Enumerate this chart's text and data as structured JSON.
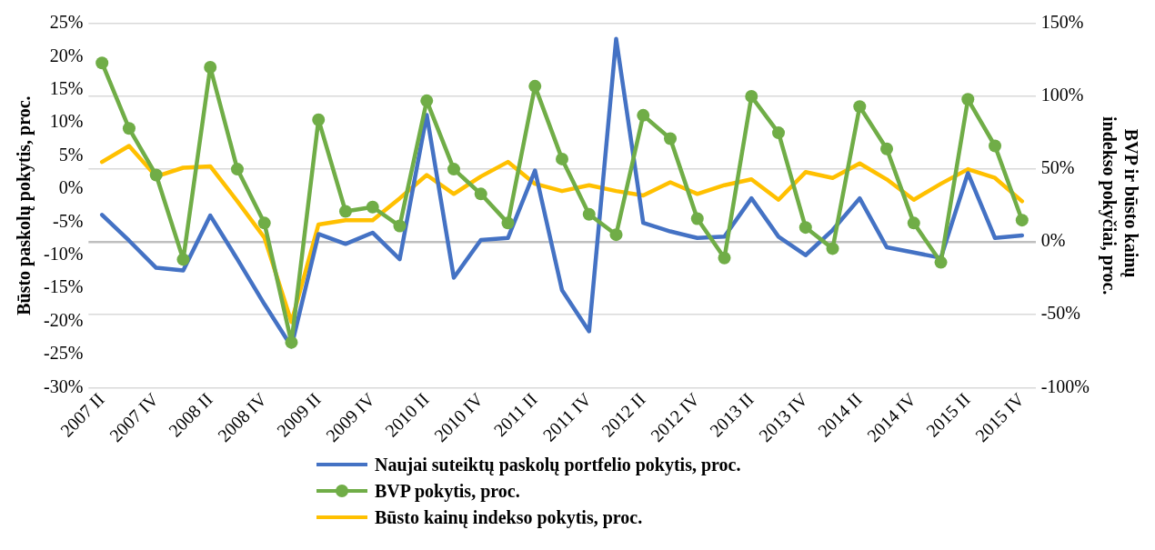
{
  "chart_data": {
    "type": "line",
    "ylabel": "Būsto paskolų pokytis, proc.",
    "y2label": "BVP ir būsto kainų  indekso pokyčiai, proc.",
    "categories": [
      "2007 II",
      null,
      "2007 IV",
      null,
      "2008 II",
      null,
      "2008 IV",
      null,
      "2009 II",
      null,
      "2009 IV",
      null,
      "2010 II",
      null,
      "2010 IV",
      null,
      "2011 II",
      null,
      "2011 IV",
      null,
      "2012 II",
      null,
      "2012 IV",
      null,
      "2013 II",
      null,
      "2013 IV",
      null,
      "2014 II",
      null,
      "2014 IV",
      null,
      "2015 II",
      null,
      "2015 IV"
    ],
    "series": [
      {
        "name": "Naujai suteiktų paskolų portfelio pokytis, proc.",
        "color": "#4472c4",
        "axis": "y",
        "marker": "none",
        "values": [
          -3.9,
          -7.8,
          -11.9,
          -12.3,
          -4.0,
          -10.6,
          -17.4,
          -23.8,
          -6.8,
          -8.3,
          -6.6,
          -10.6,
          11.2,
          -13.4,
          -7.7,
          -7.4,
          2.8,
          -15.3,
          -21.5,
          22.7,
          -5.1,
          -6.4,
          -7.4,
          -7.2,
          -1.4,
          -7.2,
          -10.0,
          -6.2,
          -1.4,
          -8.8,
          -9.6,
          -10.4,
          2.4,
          -7.4,
          -7.0
        ]
      },
      {
        "name": "BVP pokytis, proc.",
        "color": "#70ad47",
        "axis": "y2",
        "marker": "circle",
        "values": [
          123,
          78,
          46,
          -12,
          120,
          50,
          13,
          -69,
          84,
          21,
          24,
          11,
          97,
          50,
          33,
          13,
          107,
          57,
          19,
          5,
          87,
          71,
          16,
          -11,
          100,
          75,
          10,
          -4.5,
          93,
          64,
          13,
          -14,
          98,
          66,
          15
        ]
      },
      {
        "name": "Būsto kainų indekso pokytis, proc.",
        "color": "#ffc000",
        "axis": "y2",
        "marker": "none",
        "values": [
          55,
          66,
          45,
          51,
          52,
          28,
          3,
          -55,
          12,
          15,
          15,
          30,
          46,
          33,
          45,
          55,
          40,
          35,
          39,
          35,
          32,
          41,
          33,
          39,
          43,
          29,
          48,
          44,
          54,
          43,
          29,
          40,
          50,
          44,
          28
        ]
      }
    ],
    "ylim": [
      -30,
      25
    ],
    "yticks": [
      {
        "value": -30,
        "label": "-30%"
      },
      {
        "value": -25,
        "label": "-25%"
      },
      {
        "value": -20,
        "label": "-20%"
      },
      {
        "value": -15,
        "label": "-15%"
      },
      {
        "value": -10,
        "label": "-10%"
      },
      {
        "value": -5,
        "label": "-5%"
      },
      {
        "value": 0,
        "label": "0%"
      },
      {
        "value": 5,
        "label": "5%"
      },
      {
        "value": 10,
        "label": "10%"
      },
      {
        "value": 15,
        "label": "15%"
      },
      {
        "value": 20,
        "label": "20%"
      },
      {
        "value": 25,
        "label": "25%"
      }
    ],
    "y2lim": [
      -100,
      150
    ],
    "y2ticks": [
      {
        "value": -100,
        "label": "-100%"
      },
      {
        "value": -50,
        "label": "-50%"
      },
      {
        "value": 0,
        "label": "0%"
      },
      {
        "value": 50,
        "label": "50%"
      },
      {
        "value": 100,
        "label": "100%"
      },
      {
        "value": 150,
        "label": "150%"
      }
    ],
    "grid": "y",
    "legend": "bottom"
  }
}
